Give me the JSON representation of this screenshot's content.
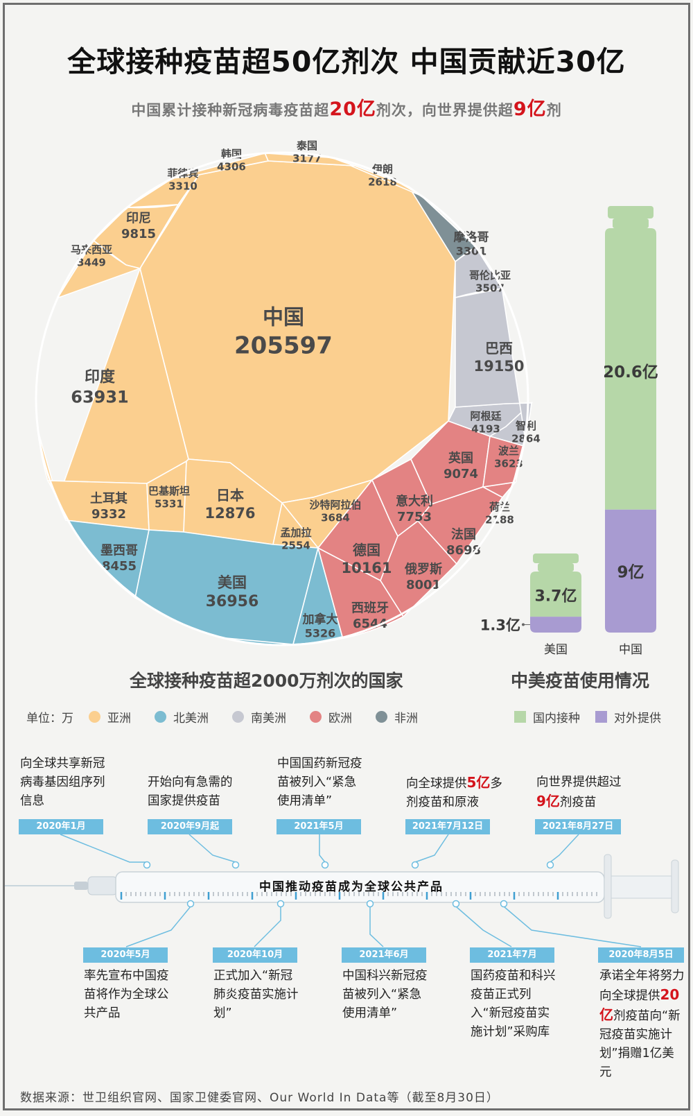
{
  "header": {
    "title": "全球接种疫苗超50亿剂次 中国贡献近30亿",
    "subtitle_pre": "中国累计接种新冠病毒疫苗超",
    "subtitle_num1": "20亿",
    "subtitle_mid": "剂次，向世界提供超",
    "subtitle_num2": "9亿",
    "subtitle_post": "剂"
  },
  "chart_data": [
    {
      "type": "voronoi-treemap",
      "title": "全球接种疫苗超2000万剂次的国家",
      "unit": "单位：万",
      "groups": [
        {
          "name": "亚洲",
          "color": "#fbcf8f"
        },
        {
          "name": "北美洲",
          "color": "#7cbcd1"
        },
        {
          "name": "南美洲",
          "color": "#c6c8d1"
        },
        {
          "name": "欧洲",
          "color": "#e38383"
        },
        {
          "name": "非洲",
          "color": "#7f9096"
        }
      ],
      "cells": [
        {
          "name": "中国",
          "value": 205597,
          "group": "亚洲"
        },
        {
          "name": "印度",
          "value": 63931,
          "group": "亚洲"
        },
        {
          "name": "日本",
          "value": 12876,
          "group": "亚洲"
        },
        {
          "name": "印尼",
          "value": 9815,
          "group": "亚洲"
        },
        {
          "name": "土耳其",
          "value": 9332,
          "group": "亚洲"
        },
        {
          "name": "巴基斯坦",
          "value": 5331,
          "group": "亚洲"
        },
        {
          "name": "韩国",
          "value": 4306,
          "group": "亚洲"
        },
        {
          "name": "沙特阿拉伯",
          "value": 3684,
          "group": "亚洲"
        },
        {
          "name": "马来西亚",
          "value": 3449,
          "group": "亚洲"
        },
        {
          "name": "菲律宾",
          "value": 3310,
          "group": "亚洲"
        },
        {
          "name": "泰国",
          "value": 3177,
          "group": "亚洲"
        },
        {
          "name": "伊朗",
          "value": 2618,
          "group": "亚洲"
        },
        {
          "name": "孟加拉",
          "value": 2554,
          "group": "亚洲"
        },
        {
          "name": "美国",
          "value": 36956,
          "group": "北美洲"
        },
        {
          "name": "墨西哥",
          "value": 8455,
          "group": "北美洲"
        },
        {
          "name": "加拿大",
          "value": 5326,
          "group": "北美洲"
        },
        {
          "name": "巴西",
          "value": 19150,
          "group": "南美洲"
        },
        {
          "name": "阿根廷",
          "value": 4193,
          "group": "南美洲"
        },
        {
          "name": "哥伦比亚",
          "value": 3507,
          "group": "南美洲"
        },
        {
          "name": "智利",
          "value": 2864,
          "group": "南美洲"
        },
        {
          "name": "德国",
          "value": 10161,
          "group": "欧洲"
        },
        {
          "name": "英国",
          "value": 9074,
          "group": "欧洲"
        },
        {
          "name": "法国",
          "value": 8698,
          "group": "欧洲"
        },
        {
          "name": "俄罗斯",
          "value": 8001,
          "group": "欧洲"
        },
        {
          "name": "意大利",
          "value": 7753,
          "group": "欧洲"
        },
        {
          "name": "西班牙",
          "value": 6544,
          "group": "欧洲"
        },
        {
          "name": "波兰",
          "value": 3623,
          "group": "欧洲"
        },
        {
          "name": "荷兰",
          "value": 2188,
          "group": "欧洲"
        },
        {
          "name": "摩洛哥",
          "value": 3301,
          "group": "非洲"
        }
      ]
    },
    {
      "type": "stacked-bar",
      "title": "中美疫苗使用情况",
      "categories": [
        "美国",
        "中国"
      ],
      "series": [
        {
          "name": "国内接种",
          "values": [
            3.7,
            20.6
          ],
          "labels": [
            "3.7亿",
            "20.6亿"
          ],
          "color": "#b6d7a8"
        },
        {
          "name": "对外提供",
          "values": [
            1.3,
            9
          ],
          "labels": [
            "1.3亿",
            "9亿"
          ],
          "color": "#a89bd1"
        }
      ]
    }
  ],
  "legend": {
    "unit": "单位：万",
    "continents": [
      "亚洲",
      "北美洲",
      "南美洲",
      "欧洲",
      "非洲"
    ],
    "bar_items": [
      "国内接种",
      "对外提供"
    ]
  },
  "timeline": {
    "banner": "中国推动疫苗成为全球公共产品",
    "top": [
      {
        "date": "2020年1月",
        "text": "向全球共享新冠病毒基因组序列信息"
      },
      {
        "date": "2020年9月起",
        "text": "开始向有急需的国家提供疫苗"
      },
      {
        "date": "2021年5月",
        "text": "中国国药新冠疫苗被列入“紧急使用清单”"
      },
      {
        "date": "2021年7月12日",
        "pre": "向全球提供",
        "red": "5亿",
        "post": "多剂疫苗和原液"
      },
      {
        "date": "2021年8月27日",
        "pre": "向世界提供超过",
        "red": "9亿",
        "post": "剂疫苗"
      }
    ],
    "bottom": [
      {
        "date": "2020年5月",
        "text": "率先宣布中国疫苗将作为全球公共产品"
      },
      {
        "date": "2020年10月",
        "text": "正式加入“新冠肺炎疫苗实施计划”"
      },
      {
        "date": "2021年6月",
        "text": "中国科兴新冠疫苗被列入“紧急使用清单”"
      },
      {
        "date": "2021年7月",
        "text": "国药疫苗和科兴疫苗正式列入“新冠疫苗实施计划”采购库"
      },
      {
        "date": "2020年8月5日",
        "pre": "承诺全年将努力向全球提供",
        "red": "20亿",
        "post": "剂疫苗向“新冠疫苗实施计划”捐赠1亿美元"
      }
    ]
  },
  "source": "数据来源：世卫组织官网、国家卫健委官网、Our World In Data等（截至8月30日）"
}
